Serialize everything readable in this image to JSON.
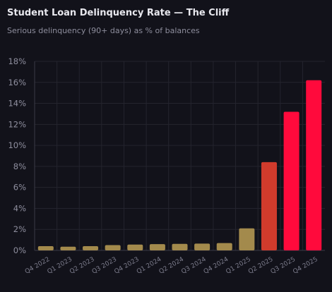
{
  "header": {
    "title": "Student Loan Delinquency Rate — The Cliff",
    "subtitle": "Serious delinquency (90+ days) as % of balances"
  },
  "colors": {
    "background": "#12121a",
    "grid": "#24242e",
    "axis": "#3a3a46",
    "bar_normal": "#a38a4c",
    "bar_warning": "#d13b2c",
    "bar_critical": "#ff0a3c"
  },
  "chart_data": {
    "type": "bar",
    "title": "Student Loan Delinquency Rate — The Cliff",
    "subtitle": "Serious delinquency (90+ days) as % of balances",
    "xlabel": "",
    "ylabel": "",
    "categories": [
      "Q4 2022",
      "Q1 2023",
      "Q2 2023",
      "Q3 2023",
      "Q4 2023",
      "Q1 2024",
      "Q2 2024",
      "Q3 2024",
      "Q4 2024",
      "Q1 2025",
      "Q2 2025",
      "Q3 2025",
      "Q4 2025"
    ],
    "values": [
      0.4,
      0.35,
      0.4,
      0.5,
      0.55,
      0.6,
      0.62,
      0.65,
      0.7,
      2.1,
      8.4,
      13.2,
      16.2
    ],
    "bar_levels": [
      "normal",
      "normal",
      "normal",
      "normal",
      "normal",
      "normal",
      "normal",
      "normal",
      "normal",
      "normal",
      "warning",
      "critical",
      "critical"
    ],
    "ylim": [
      0,
      18
    ],
    "yticks": [
      0,
      2,
      4,
      6,
      8,
      10,
      12,
      14,
      16,
      18
    ],
    "ytick_labels": [
      "0%",
      "2%",
      "4%",
      "6%",
      "8%",
      "10%",
      "12%",
      "14%",
      "16%",
      "18%"
    ],
    "grid": true,
    "legend": "none"
  }
}
